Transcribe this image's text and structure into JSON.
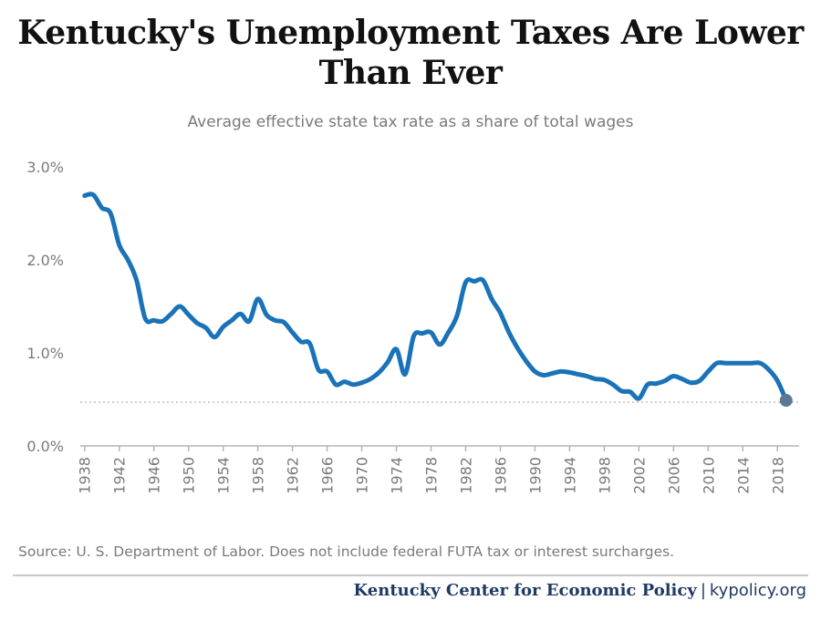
{
  "chart_data": {
    "type": "line",
    "title": "Kentucky's Unemployment Taxes Are Lower Than Ever",
    "subtitle": "Average effective state tax rate as a share of total wages",
    "xlabel": "",
    "ylabel": "",
    "ylim": [
      0,
      3
    ],
    "y_ticks": [
      "0.0%",
      "1.0%",
      "2.0%",
      "3.0%"
    ],
    "x_ticks": [
      "1938",
      "1942",
      "1946",
      "1950",
      "1954",
      "1958",
      "1962",
      "1966",
      "1970",
      "1974",
      "1978",
      "1982",
      "1986",
      "1990",
      "1994",
      "1998",
      "2002",
      "2006",
      "2010",
      "2014",
      "2018"
    ],
    "x_range": [
      1937.5,
      2020.5
    ],
    "reference_line": 0.47,
    "grid": false,
    "line_color": "#1a73b8",
    "marker_color": "#5a7896",
    "reference_color": "#c0c0c0",
    "series": [
      {
        "x": [
          1938,
          1939,
          1940,
          1941,
          1942,
          1943,
          1944,
          1945,
          1946,
          1947,
          1948,
          1949,
          1950,
          1951,
          1952,
          1953,
          1954,
          1955,
          1956,
          1957,
          1958,
          1959,
          1960,
          1961,
          1962,
          1963,
          1964,
          1965,
          1966,
          1967,
          1968,
          1969,
          1970,
          1971,
          1972,
          1973,
          1974,
          1975,
          1976,
          1977,
          1978,
          1979,
          1980,
          1981,
          1982,
          1983,
          1984,
          1985,
          1986,
          1987,
          1988,
          1989,
          1990,
          1991,
          1992,
          1993,
          1994,
          1995,
          1996,
          1997,
          1998,
          1999,
          2000,
          2001,
          2002,
          2003,
          2004,
          2005,
          2006,
          2007,
          2008,
          2009,
          2010,
          2011,
          2012,
          2013,
          2014,
          2015,
          2016,
          2017,
          2018,
          2019
        ],
        "values": [
          2.69,
          2.7,
          2.56,
          2.5,
          2.16,
          2.0,
          1.78,
          1.37,
          1.35,
          1.34,
          1.42,
          1.5,
          1.41,
          1.32,
          1.27,
          1.17,
          1.28,
          1.35,
          1.42,
          1.34,
          1.58,
          1.41,
          1.35,
          1.33,
          1.22,
          1.12,
          1.1,
          0.82,
          0.8,
          0.66,
          0.69,
          0.66,
          0.68,
          0.72,
          0.79,
          0.9,
          1.04,
          0.77,
          1.18,
          1.21,
          1.22,
          1.09,
          1.22,
          1.4,
          1.76,
          1.77,
          1.78,
          1.58,
          1.43,
          1.22,
          1.05,
          0.91,
          0.8,
          0.76,
          0.78,
          0.8,
          0.79,
          0.77,
          0.75,
          0.72,
          0.71,
          0.66,
          0.59,
          0.58,
          0.51,
          0.66,
          0.67,
          0.7,
          0.75,
          0.72,
          0.68,
          0.7,
          0.8,
          0.89,
          0.89,
          0.89,
          0.89,
          0.89,
          0.89,
          0.82,
          0.7,
          0.49
        ]
      }
    ]
  },
  "source_text": "Source: U. S. Department of Labor. Does not include federal FUTA tax or interest surcharges.",
  "footer": {
    "org": "Kentucky Center for Economic Policy",
    "separator": "|",
    "url": "kypolicy.org"
  }
}
